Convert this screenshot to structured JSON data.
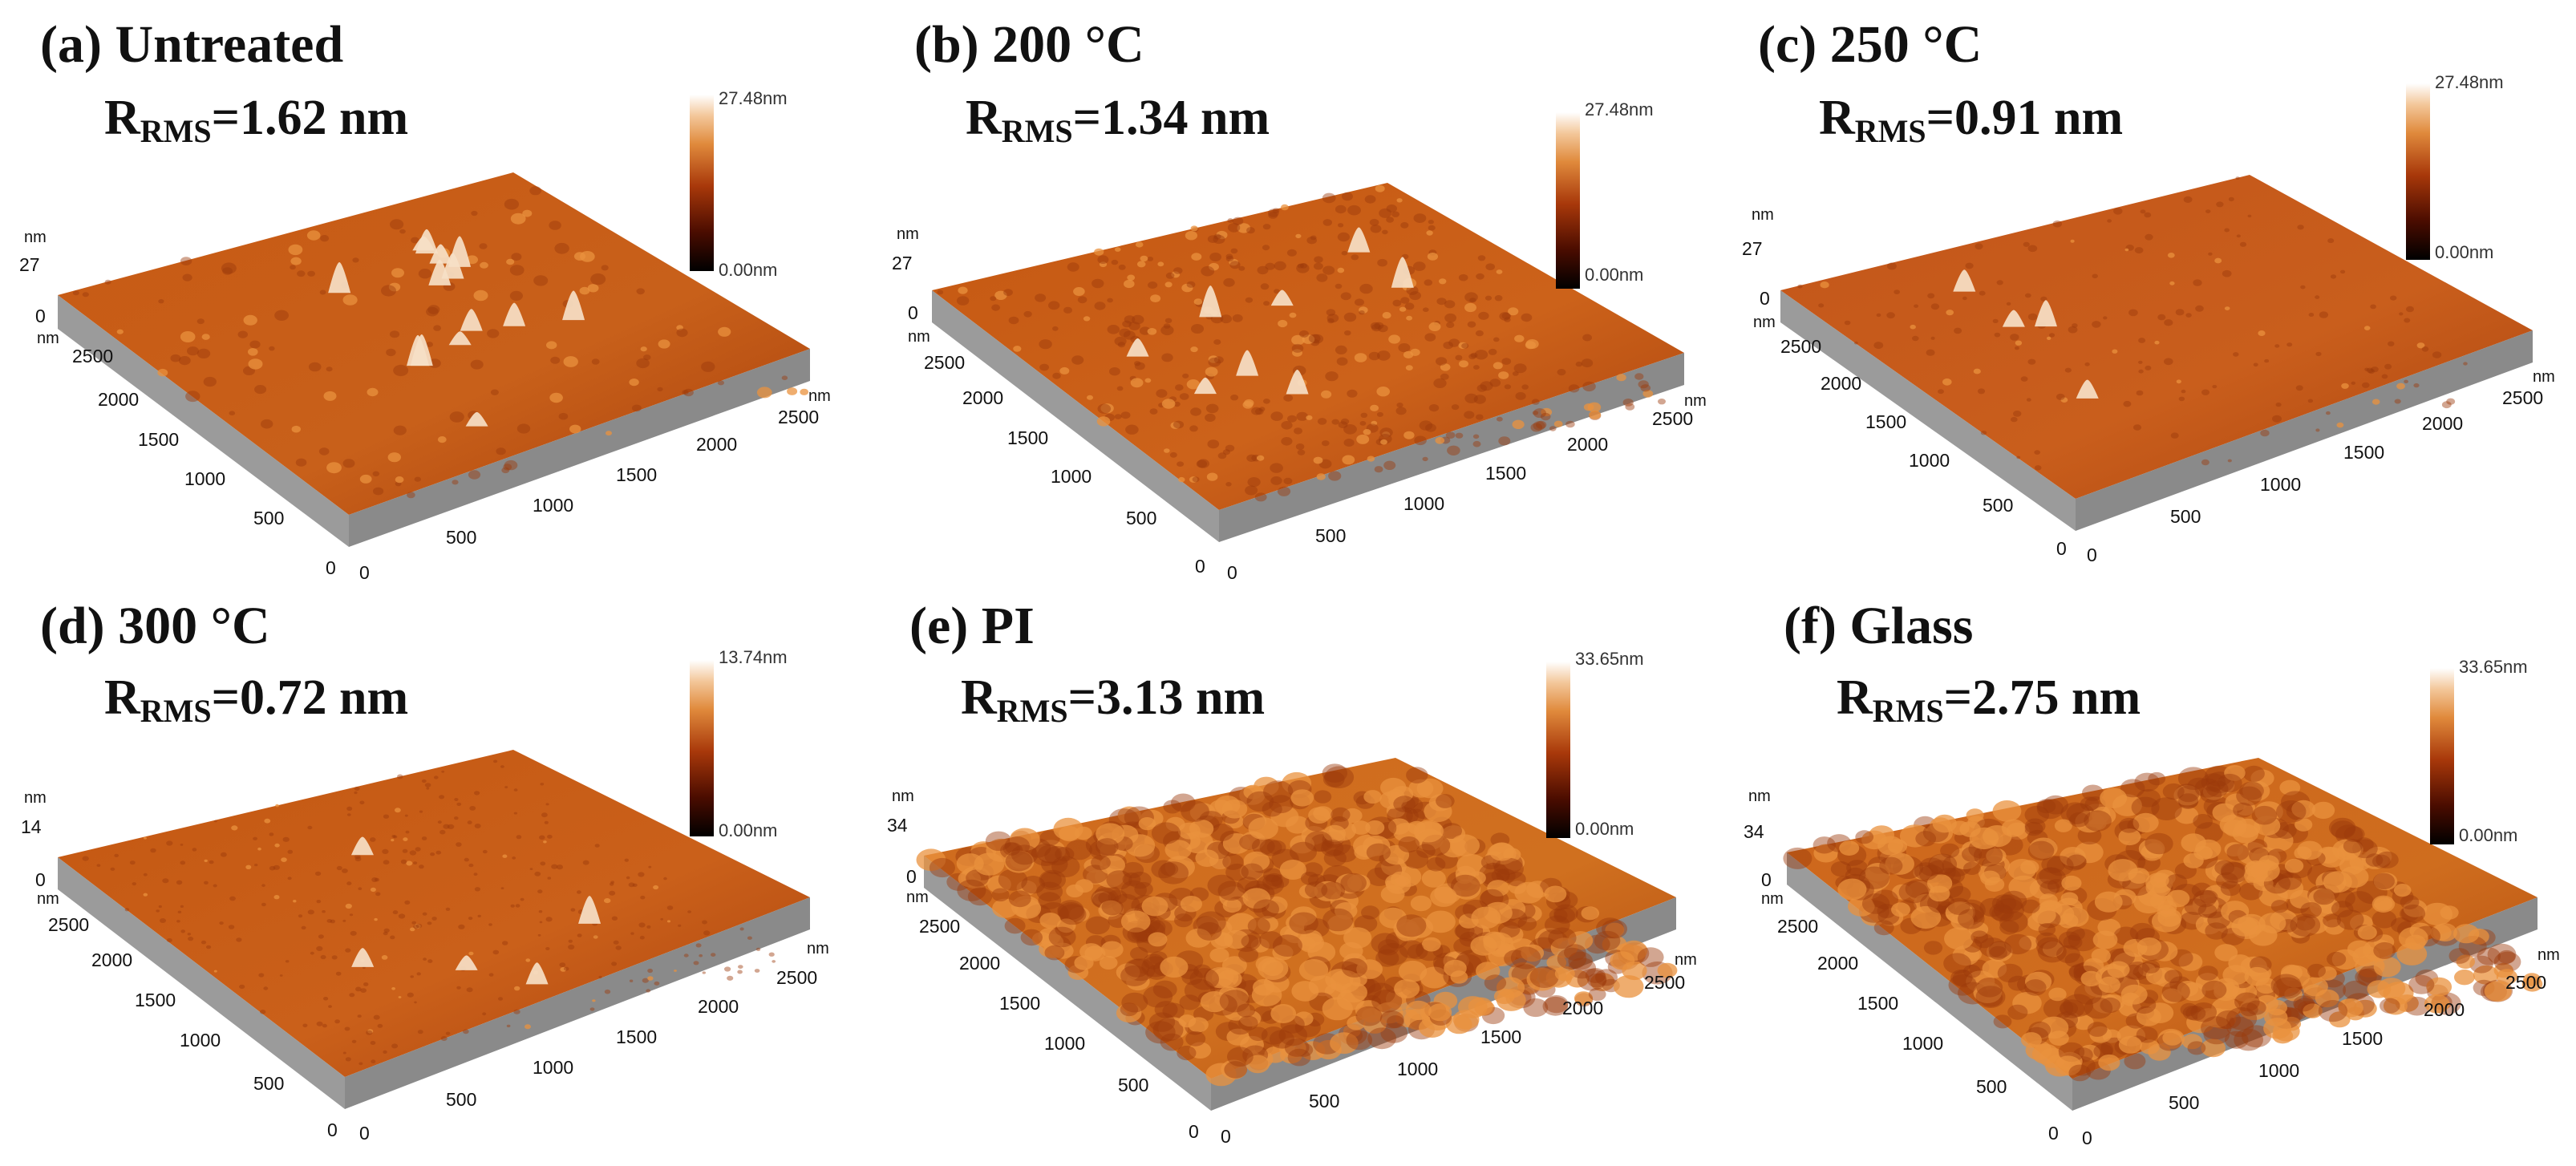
{
  "figure": {
    "panels": [
      {
        "id": "a",
        "title": "(a) Untreated",
        "rms": {
          "prefix": "R",
          "sub": "RMS",
          "value": "=1.62 nm"
        },
        "scale": {
          "max": "27.48nm",
          "min": "0.00nm"
        },
        "axes": {
          "z_unit": "nm",
          "z_max": "27",
          "z_min": "0",
          "x_unit": "nm",
          "y_unit": "nm",
          "x_ticks": [
            "0",
            "500",
            "1000",
            "1500",
            "2000",
            "2500"
          ],
          "y_ticks": [
            "0",
            "500",
            "1000",
            "1500",
            "2000",
            "2500"
          ]
        },
        "texture": "rough-low"
      },
      {
        "id": "b",
        "title": "(b) 200 °C",
        "rms": {
          "prefix": "R",
          "sub": "RMS",
          "value": "=1.34 nm"
        },
        "scale": {
          "max": "27.48nm",
          "min": "0.00nm"
        },
        "axes": {
          "z_unit": "nm",
          "z_max": "27",
          "z_min": "0",
          "x_unit": "nm",
          "y_unit": "nm",
          "x_ticks": [
            "0",
            "500",
            "1000",
            "1500",
            "2000",
            "2500"
          ],
          "y_ticks": [
            "0",
            "500",
            "1000",
            "1500",
            "2000",
            "2500"
          ]
        },
        "texture": "grainy-low"
      },
      {
        "id": "c",
        "title": "(c) 250 °C",
        "rms": {
          "prefix": "R",
          "sub": "RMS",
          "value": "=0.91 nm"
        },
        "scale": {
          "max": "27.48nm",
          "min": "0.00nm"
        },
        "axes": {
          "z_unit": "nm",
          "z_max": "27",
          "z_min": "0",
          "x_unit": "nm",
          "y_unit": "nm",
          "x_ticks": [
            "0",
            "500",
            "1000",
            "1500",
            "2000",
            "2500"
          ],
          "y_ticks": [
            "0",
            "500",
            "1000",
            "1500",
            "2000",
            "2500"
          ]
        },
        "texture": "smooth"
      },
      {
        "id": "d",
        "title": "(d) 300 °C",
        "rms": {
          "prefix": "R",
          "sub": "RMS",
          "value": "=0.72 nm"
        },
        "scale": {
          "max": "13.74nm",
          "min": "0.00nm"
        },
        "axes": {
          "z_unit": "nm",
          "z_max": "14",
          "z_min": "0",
          "x_unit": "nm",
          "y_unit": "nm",
          "x_ticks": [
            "0",
            "500",
            "1000",
            "1500",
            "2000",
            "2500"
          ],
          "y_ticks": [
            "0",
            "500",
            "1000",
            "1500",
            "2000",
            "2500"
          ]
        },
        "texture": "smooth-fine"
      },
      {
        "id": "e",
        "title": "(e) PI",
        "rms": {
          "prefix": "R",
          "sub": "RMS",
          "value": "=3.13 nm"
        },
        "scale": {
          "max": "33.65nm",
          "min": "0.00nm"
        },
        "axes": {
          "z_unit": "nm",
          "z_max": "34",
          "z_min": "0",
          "x_unit": "nm",
          "y_unit": "nm",
          "x_ticks": [
            "0",
            "500",
            "1000",
            "1500",
            "2000",
            "2500"
          ],
          "y_ticks": [
            "0",
            "500",
            "1000",
            "1500",
            "2000",
            "2500"
          ]
        },
        "texture": "bumpy"
      },
      {
        "id": "f",
        "title": "(f) Glass",
        "rms": {
          "prefix": "R",
          "sub": "RMS",
          "value": "=2.75 nm"
        },
        "scale": {
          "max": "33.65nm",
          "min": "0.00nm"
        },
        "axes": {
          "z_unit": "nm",
          "z_max": "34",
          "z_min": "0",
          "x_unit": "nm",
          "y_unit": "nm",
          "x_ticks": [
            "0",
            "500",
            "1000",
            "1500",
            "2000",
            "2500"
          ],
          "y_ticks": [
            "0",
            "500",
            "1000",
            "1500",
            "2000",
            "2500"
          ]
        },
        "texture": "bumpy"
      }
    ]
  }
}
